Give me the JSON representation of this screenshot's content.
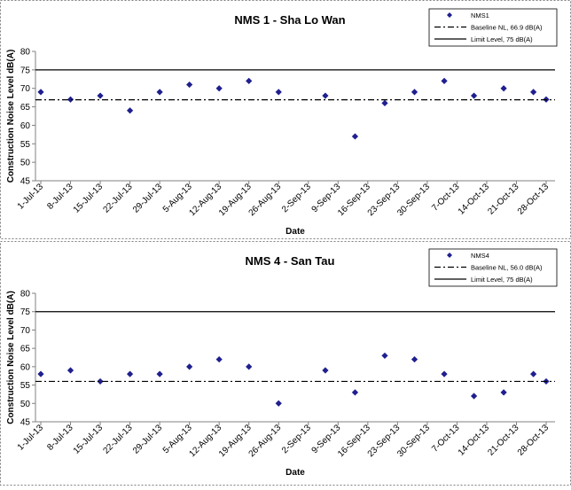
{
  "chart_data": [
    {
      "type": "scatter",
      "title": "NMS 1 - Sha Lo Wan",
      "xlabel": "Date",
      "ylabel": "Construction Noise Level  dB(A)",
      "ylim": [
        45,
        80
      ],
      "y_ticks": [
        "45",
        "50",
        "55",
        "60",
        "65",
        "70",
        "75",
        "80"
      ],
      "grid": false,
      "legend_placement": "top-right",
      "categories": [
        "1-Jul-13",
        "8-Jul-13",
        "15-Jul-13",
        "22-Jul-13",
        "29-Jul-13",
        "5-Aug-13",
        "12-Aug-13",
        "19-Aug-13",
        "26-Aug-13",
        "2-Sep-13",
        "9-Sep-13",
        "16-Sep-13",
        "23-Sep-13",
        "30-Sep-13",
        "7-Oct-13",
        "14-Oct-13",
        "21-Oct-13",
        "28-Oct-13"
      ],
      "series": [
        {
          "name": "NMS1",
          "kind": "points",
          "color": "#1f1f8f",
          "x": [
            "1-Jul-13",
            "8-Jul-13",
            "15-Jul-13",
            "22-Jul-13",
            "29-Jul-13",
            "5-Aug-13",
            "12-Aug-13",
            "19-Aug-13",
            "26-Aug-13",
            "6-Sep-13",
            "13-Sep-13",
            "20-Sep-13",
            "27-Sep-13",
            "4-Oct-13",
            "11-Oct-13",
            "18-Oct-13",
            "25-Oct-13",
            "28-Oct-13"
          ],
          "y": [
            69,
            67,
            68,
            64,
            69,
            71,
            70,
            72,
            69,
            68,
            57,
            66,
            69,
            72,
            68,
            70,
            69,
            67
          ]
        },
        {
          "name": "Baseline NL, 66.9 dB(A)",
          "kind": "hline",
          "value": 66.9,
          "style": "dash-dot",
          "color": "#000000"
        },
        {
          "name": "Limit Level, 75 dB(A)",
          "kind": "hline",
          "value": 75,
          "style": "solid",
          "color": "#000000"
        }
      ]
    },
    {
      "type": "scatter",
      "title": "NMS 4 - San Tau",
      "xlabel": "Date",
      "ylabel": "Construction Noise Level  dB(A)",
      "ylim": [
        45,
        80
      ],
      "y_ticks": [
        "45",
        "50",
        "55",
        "60",
        "65",
        "70",
        "75",
        "80"
      ],
      "grid": false,
      "legend_placement": "top-right",
      "categories": [
        "1-Jul-13",
        "8-Jul-13",
        "15-Jul-13",
        "22-Jul-13",
        "29-Jul-13",
        "5-Aug-13",
        "12-Aug-13",
        "19-Aug-13",
        "26-Aug-13",
        "2-Sep-13",
        "9-Sep-13",
        "16-Sep-13",
        "23-Sep-13",
        "30-Sep-13",
        "7-Oct-13",
        "14-Oct-13",
        "21-Oct-13",
        "28-Oct-13"
      ],
      "series": [
        {
          "name": "NMS4",
          "kind": "points",
          "color": "#1f1f8f",
          "x": [
            "1-Jul-13",
            "8-Jul-13",
            "15-Jul-13",
            "22-Jul-13",
            "29-Jul-13",
            "5-Aug-13",
            "12-Aug-13",
            "19-Aug-13",
            "26-Aug-13",
            "6-Sep-13",
            "13-Sep-13",
            "20-Sep-13",
            "27-Sep-13",
            "4-Oct-13",
            "11-Oct-13",
            "18-Oct-13",
            "25-Oct-13",
            "28-Oct-13"
          ],
          "y": [
            58,
            59,
            56,
            58,
            58,
            60,
            62,
            60,
            50,
            59,
            53,
            63,
            62,
            58,
            52,
            53,
            58,
            56
          ]
        },
        {
          "name": "Baseline NL, 56.0 dB(A)",
          "kind": "hline",
          "value": 56.0,
          "style": "dash-dot",
          "color": "#000000"
        },
        {
          "name": "Limit Level, 75 dB(A)",
          "kind": "hline",
          "value": 75,
          "style": "solid",
          "color": "#000000"
        }
      ]
    }
  ]
}
